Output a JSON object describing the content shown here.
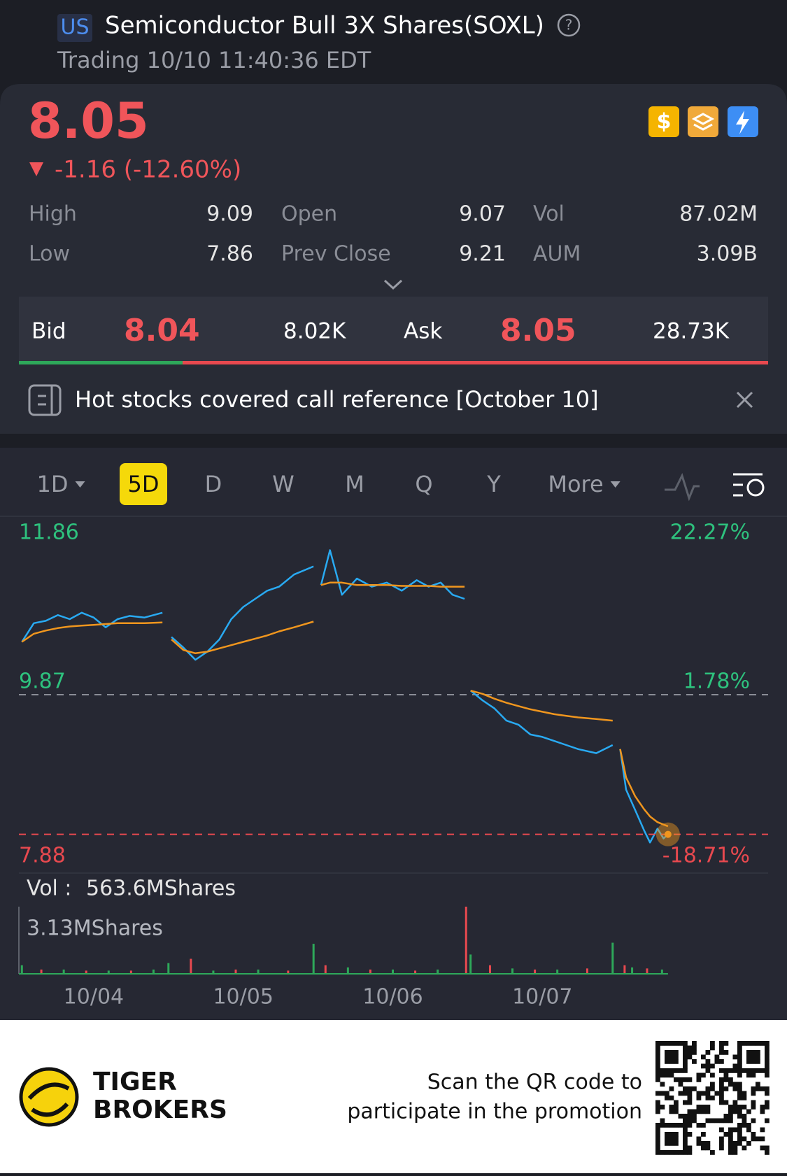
{
  "header": {
    "market": "US",
    "title": "Semiconductor Bull 3X Shares(SOXL)",
    "status": "Trading 10/10 11:40:36 EDT"
  },
  "quote": {
    "price": "8.05",
    "change": "-1.16 (-12.60%)"
  },
  "stats": [
    [
      {
        "label": "High",
        "value": "9.09"
      },
      {
        "label": "Open",
        "value": "9.07"
      },
      {
        "label": "Vol",
        "value": "87.02M"
      }
    ],
    [
      {
        "label": "Low",
        "value": "7.86"
      },
      {
        "label": "Prev Close",
        "value": "9.21"
      },
      {
        "label": "AUM",
        "value": "3.09B"
      }
    ]
  ],
  "order_book": {
    "bid_label": "Bid",
    "bid": "8.04",
    "bid_size": "8.02K",
    "ask_label": "Ask",
    "ask": "8.05",
    "ask_size": "28.73K"
  },
  "notice": "Hot stocks covered call  reference [October 10]",
  "tabs": [
    "1D",
    "5D",
    "D",
    "W",
    "M",
    "Q",
    "Y",
    "More"
  ],
  "active_tab": 1,
  "chart_data": {
    "type": "line",
    "x": [
      0.02,
      0.1,
      0.18,
      0.26,
      0.34,
      0.42,
      0.5,
      0.58,
      0.66,
      0.74,
      0.84,
      0.96,
      null,
      1.02,
      1.1,
      1.18,
      1.26,
      1.34,
      1.42,
      1.5,
      1.58,
      1.66,
      1.74,
      1.84,
      1.97,
      null,
      2.02,
      2.08,
      2.16,
      2.26,
      2.36,
      2.46,
      2.56,
      2.66,
      2.74,
      2.82,
      2.9,
      2.98,
      null,
      3.02,
      3.1,
      3.18,
      3.26,
      3.34,
      3.42,
      3.5,
      3.58,
      3.66,
      3.74,
      3.86,
      3.97,
      null,
      4.02,
      4.06,
      4.12,
      4.18,
      4.22,
      4.27,
      4.31,
      4.34
    ],
    "series": [
      {
        "color": "#29aaf2",
        "values": [
          10.52,
          10.75,
          10.78,
          10.85,
          10.8,
          10.88,
          10.82,
          10.7,
          10.8,
          10.84,
          10.82,
          10.88,
          null,
          10.58,
          10.45,
          10.3,
          10.4,
          10.55,
          10.8,
          10.95,
          11.05,
          11.15,
          11.2,
          11.35,
          11.45,
          null,
          11.22,
          11.65,
          11.1,
          11.3,
          11.2,
          11.25,
          11.15,
          11.28,
          11.2,
          11.25,
          11.1,
          11.05,
          null,
          9.92,
          9.8,
          9.7,
          9.55,
          9.5,
          9.38,
          9.35,
          9.3,
          9.25,
          9.2,
          9.15,
          9.25,
          null,
          9.2,
          8.7,
          8.45,
          8.2,
          8.05,
          8.22,
          8.1,
          8.15
        ]
      },
      {
        "color": "#f0961e",
        "values": [
          10.52,
          10.62,
          10.66,
          10.69,
          10.71,
          10.72,
          10.73,
          10.74,
          10.75,
          10.75,
          10.75,
          10.76,
          null,
          10.55,
          10.42,
          10.38,
          10.4,
          10.44,
          10.48,
          10.52,
          10.56,
          10.6,
          10.65,
          10.7,
          10.77,
          null,
          11.22,
          11.25,
          11.25,
          11.22,
          11.22,
          11.22,
          11.21,
          11.21,
          11.21,
          11.2,
          11.2,
          11.2,
          null,
          9.92,
          9.88,
          9.82,
          9.77,
          9.73,
          9.69,
          9.66,
          9.63,
          9.61,
          9.59,
          9.57,
          9.55,
          null,
          9.2,
          8.85,
          8.62,
          8.46,
          8.37,
          8.3,
          8.27,
          8.25
        ]
      }
    ],
    "xlim": [
      0,
      5
    ],
    "xticks": [
      {
        "value": 0.5,
        "label": "10/04"
      },
      {
        "value": 1.5,
        "label": "10/05"
      },
      {
        "value": 2.5,
        "label": "10/06"
      },
      {
        "value": 3.5,
        "label": "10/07"
      }
    ],
    "ylim": [
      7.88,
      11.86
    ],
    "yticks": [
      11.86,
      9.87,
      7.88
    ],
    "y2lim": [
      -18.71,
      22.27
    ],
    "y2ticks": [
      {
        "value": 22.27,
        "label": "22.27%"
      },
      {
        "value": 1.78,
        "label": "1.78%"
      },
      {
        "value": -18.71,
        "label": "-18.71%"
      }
    ],
    "volume": {
      "label": "Vol :",
      "total": "563.6MShares",
      "max_label": "3.13MShares",
      "ylim": [
        0,
        3.13
      ],
      "series": [
        {
          "color": "#2ea85a",
          "x": [
            0.02,
            0.3,
            0.6,
            0.9,
            1.0,
            1.3,
            1.6,
            1.97,
            2.2,
            2.5,
            2.8,
            3.02,
            3.3,
            3.6,
            3.97,
            4.1,
            4.3
          ],
          "values": [
            0.4,
            0.2,
            0.15,
            0.2,
            0.5,
            0.15,
            0.2,
            1.4,
            0.3,
            0.2,
            0.2,
            0.9,
            0.25,
            0.2,
            1.45,
            0.3,
            0.2
          ]
        },
        {
          "color": "#e8494f",
          "x": [
            0.15,
            0.45,
            0.75,
            1.15,
            1.45,
            1.8,
            2.05,
            2.35,
            2.65,
            2.99,
            3.15,
            3.45,
            3.8,
            4.05,
            4.2
          ],
          "values": [
            0.2,
            0.15,
            0.15,
            0.7,
            0.2,
            0.15,
            0.4,
            0.2,
            0.15,
            3.13,
            0.4,
            0.2,
            0.25,
            0.4,
            0.25
          ]
        }
      ]
    }
  },
  "footer": {
    "brand_line1": "TIGER",
    "brand_line2": "BROKERS",
    "promo_line1": "Scan the QR code to",
    "promo_line2": "participate in the promotion"
  }
}
